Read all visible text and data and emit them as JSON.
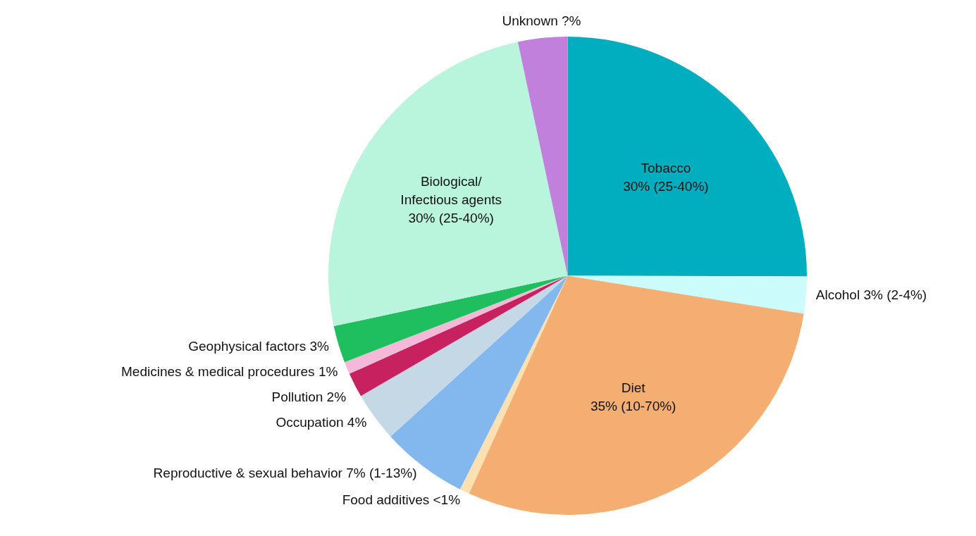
{
  "chart_data": {
    "type": "pie",
    "categories": [
      "Tobacco",
      "Alcohol",
      "Diet",
      "Food additives",
      "Reproductive & sexual behavior",
      "Occupation",
      "Pollution",
      "Medicines & medical procedures",
      "Geophysical factors",
      "Biological/ Infectious agents",
      "Unknown"
    ],
    "values": [
      30,
      3,
      35,
      0.8,
      7,
      4,
      2,
      1,
      3,
      30,
      4
    ],
    "colors": [
      "#00aec0",
      "#ccfbfb",
      "#f5ae72",
      "#fde0b0",
      "#82b8ee",
      "#c4d8e6",
      "#c8215f",
      "#f6b8d8",
      "#1fbf5f",
      "#b8f5dc",
      "#c080dc"
    ],
    "value_labels": [
      "30% (25-40%)",
      "3% (2-4%)",
      "35% (10-70%)",
      "<1%",
      "7% (1-13%)",
      "4%",
      "2%",
      "1%",
      "3%",
      "30% (25-40%)",
      "?%"
    ],
    "legend": false
  }
}
